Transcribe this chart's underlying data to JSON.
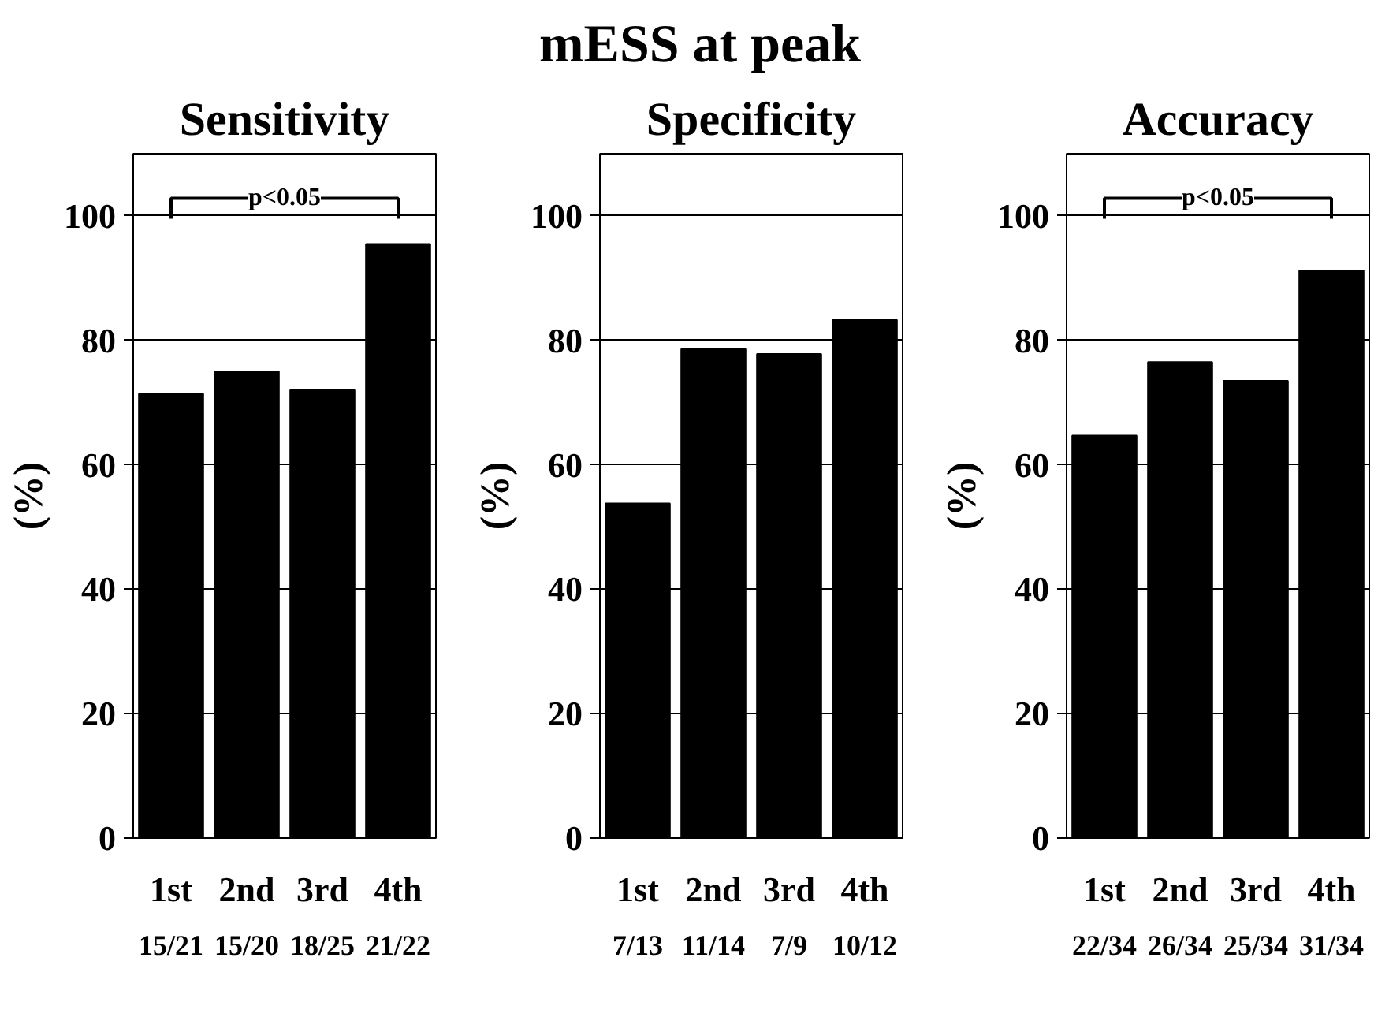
{
  "chart_data": [
    {
      "type": "bar",
      "title": "Sensitivity",
      "ylabel": "(%)",
      "categories": [
        "1st",
        "2nd",
        "3rd",
        "4th"
      ],
      "values": [
        71.4,
        75,
        72,
        95.5
      ],
      "color": "#000000",
      "ylim": [
        0,
        110
      ],
      "yticks": [
        0,
        20,
        40,
        60,
        80,
        100
      ],
      "grid": "y",
      "annotations": [
        "15/21",
        "15/20",
        "18/25",
        "21/22",
        "p<0.05"
      ]
    },
    {
      "type": "bar",
      "title": "mESS at peak",
      "subtitle": "Specificity",
      "ylabel": "(%)",
      "categories": [
        "1st",
        "2nd",
        "3rd",
        "4th"
      ],
      "values": [
        53.8,
        78.6,
        77.8,
        83.3
      ],
      "color": "#000000",
      "ylim": [
        0,
        110
      ],
      "yticks": [
        0,
        20,
        40,
        60,
        80,
        100
      ],
      "grid": "y",
      "annotations": [
        "7/13",
        "11/14",
        "7/9",
        "10/12"
      ]
    },
    {
      "type": "bar",
      "title": "Accuracy",
      "ylabel": "(%)",
      "categories": [
        "1st",
        "2nd",
        "3rd",
        "4th"
      ],
      "values": [
        64.7,
        76.5,
        73.5,
        91.2
      ],
      "color": "#000000",
      "ylim": [
        0,
        110
      ],
      "yticks": [
        0,
        20,
        40,
        60,
        80,
        100
      ],
      "grid": "y",
      "annotations": [
        "22/34",
        "26/34",
        "25/34",
        "31/34",
        "p<0.05"
      ]
    }
  ]
}
